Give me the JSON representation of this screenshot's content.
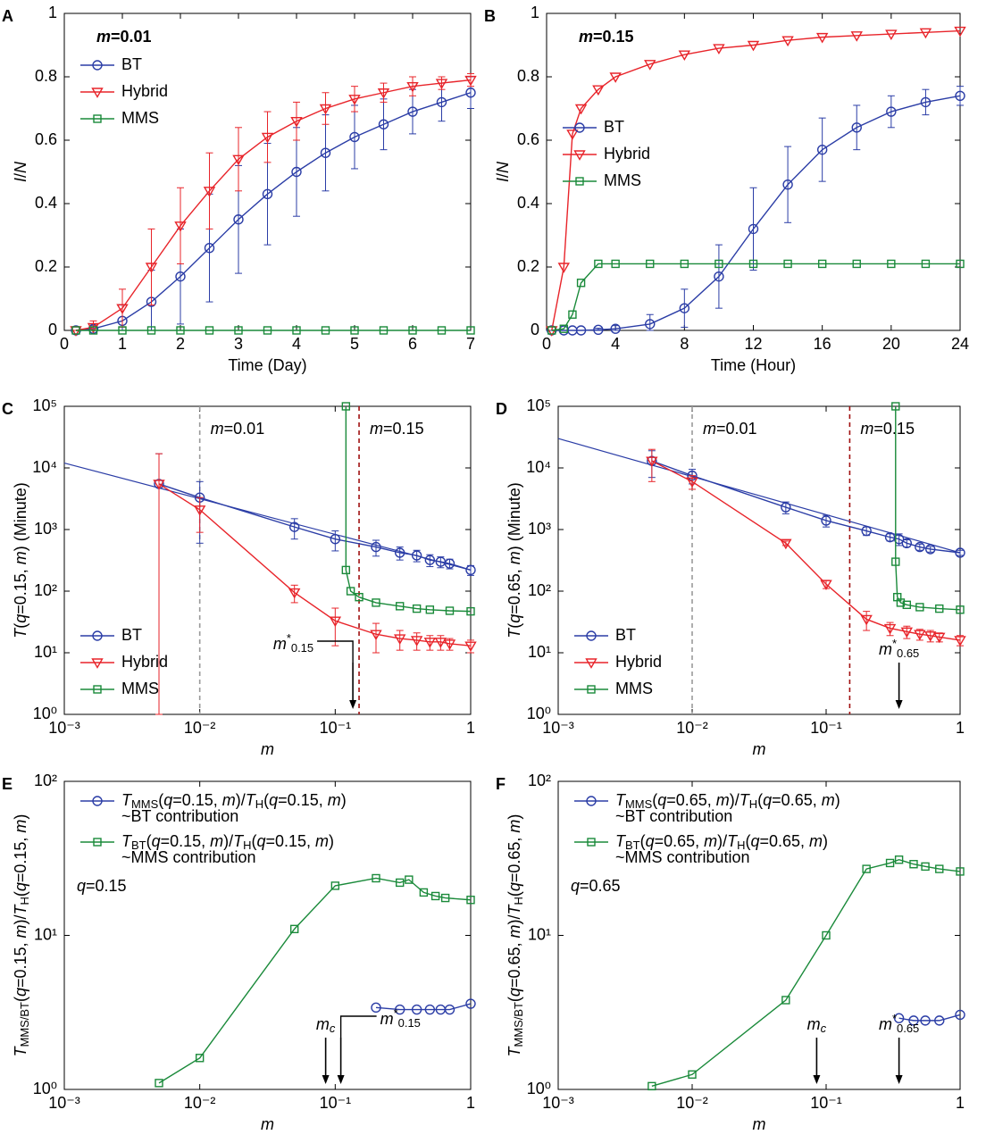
{
  "chart_data": [
    {
      "type": "line",
      "panel": "A",
      "xlabel": "Time (Day)",
      "ylabel": "I/N",
      "xscale": "linear",
      "yscale": "linear",
      "xlim": [
        0,
        7
      ],
      "xticks": [
        0,
        1,
        2,
        3,
        4,
        5,
        6,
        7
      ],
      "ylim": [
        0,
        1
      ],
      "yticks": [
        0,
        0.2,
        0.4,
        0.6,
        0.8,
        1
      ],
      "legend": "upper left",
      "annotations": [
        {
          "text": "m=0.01",
          "color": "#999999"
        }
      ],
      "series": [
        {
          "name": "BT",
          "color": "#2b3da6",
          "marker": "circle",
          "x": [
            0.2,
            0.5,
            1,
            1.5,
            2,
            2.5,
            3,
            3.5,
            4,
            4.5,
            5,
            5.5,
            6,
            6.5,
            7
          ],
          "values": [
            0,
            0.005,
            0.03,
            0.09,
            0.17,
            0.26,
            0.35,
            0.43,
            0.5,
            0.56,
            0.61,
            0.65,
            0.69,
            0.72,
            0.75
          ],
          "errors": [
            0,
            0.01,
            0.05,
            0.1,
            0.15,
            0.17,
            0.17,
            0.16,
            0.14,
            0.12,
            0.1,
            0.08,
            0.07,
            0.06,
            0.05
          ]
        },
        {
          "name": "Hybrid",
          "color": "#e8242a",
          "marker": "triangle",
          "x": [
            0.2,
            0.5,
            1,
            1.5,
            2,
            2.5,
            3,
            3.5,
            4,
            4.5,
            5,
            5.5,
            6,
            6.5,
            7
          ],
          "values": [
            0,
            0.01,
            0.07,
            0.2,
            0.33,
            0.44,
            0.54,
            0.61,
            0.66,
            0.7,
            0.73,
            0.75,
            0.77,
            0.78,
            0.79
          ],
          "errors": [
            0,
            0.02,
            0.06,
            0.12,
            0.12,
            0.12,
            0.1,
            0.08,
            0.06,
            0.05,
            0.04,
            0.03,
            0.03,
            0.02,
            0.02
          ]
        },
        {
          "name": "MMS",
          "color": "#1a8a3a",
          "marker": "square",
          "x": [
            0.2,
            0.5,
            1,
            1.5,
            2,
            2.5,
            3,
            3.5,
            4,
            4.5,
            5,
            5.5,
            6,
            6.5,
            7
          ],
          "values": [
            0,
            0,
            0,
            0,
            0,
            0,
            0,
            0,
            0,
            0,
            0,
            0,
            0,
            0,
            0
          ]
        }
      ]
    },
    {
      "type": "line",
      "panel": "B",
      "xlabel": "Time (Hour)",
      "ylabel": "I/N",
      "xscale": "linear",
      "yscale": "linear",
      "xlim": [
        0,
        24
      ],
      "xticks": [
        0,
        4,
        8,
        12,
        16,
        20,
        24
      ],
      "ylim": [
        0,
        1
      ],
      "yticks": [
        0,
        0.2,
        0.4,
        0.6,
        0.8,
        1
      ],
      "legend": "center left",
      "annotations": [
        {
          "text": "m=0.15",
          "color": "#a01010"
        }
      ],
      "series": [
        {
          "name": "BT",
          "color": "#2b3da6",
          "marker": "circle",
          "x": [
            0.3,
            1,
            1.5,
            2,
            3,
            4,
            6,
            8,
            10,
            12,
            14,
            16,
            18,
            20,
            22,
            24
          ],
          "values": [
            0,
            0,
            0,
            0,
            0.002,
            0.005,
            0.02,
            0.07,
            0.17,
            0.32,
            0.46,
            0.57,
            0.64,
            0.69,
            0.72,
            0.74
          ],
          "errors": [
            0,
            0,
            0,
            0,
            0.005,
            0.01,
            0.03,
            0.06,
            0.1,
            0.13,
            0.12,
            0.1,
            0.07,
            0.05,
            0.04,
            0.03
          ]
        },
        {
          "name": "Hybrid",
          "color": "#e8242a",
          "marker": "triangle",
          "x": [
            0.3,
            1,
            1.5,
            2,
            3,
            4,
            6,
            8,
            10,
            12,
            14,
            16,
            18,
            20,
            22,
            24
          ],
          "values": [
            0,
            0.2,
            0.62,
            0.7,
            0.76,
            0.8,
            0.84,
            0.87,
            0.89,
            0.9,
            0.915,
            0.925,
            0.93,
            0.935,
            0.94,
            0.945
          ]
        },
        {
          "name": "MMS",
          "color": "#1a8a3a",
          "marker": "square",
          "x": [
            0.3,
            1,
            1.5,
            2,
            3,
            4,
            6,
            8,
            10,
            12,
            14,
            16,
            18,
            20,
            22,
            24
          ],
          "values": [
            0,
            0.005,
            0.05,
            0.15,
            0.21,
            0.21,
            0.21,
            0.21,
            0.21,
            0.21,
            0.21,
            0.21,
            0.21,
            0.21,
            0.21,
            0.21
          ]
        }
      ]
    },
    {
      "type": "line",
      "panel": "C",
      "xlabel": "m",
      "ylabel": "T(q=0.15, m) (Minute)",
      "xscale": "log",
      "yscale": "log",
      "xlim": [
        0.001,
        1
      ],
      "xticks": [
        {
          "value": 0.001,
          "label": "10⁻³"
        },
        {
          "value": 0.01,
          "label": "10⁻²"
        },
        {
          "value": 0.1,
          "label": "10⁻¹"
        },
        1
      ],
      "ylim": [
        1,
        100000
      ],
      "yticks": [
        {
          "value": 1,
          "label": "10⁰"
        },
        {
          "value": 10,
          "label": "10¹"
        },
        {
          "value": 100,
          "label": "10²"
        },
        {
          "value": 1000,
          "label": "10³"
        },
        {
          "value": 10000,
          "label": "10⁴"
        },
        {
          "value": 100000,
          "label": "10⁵"
        }
      ],
      "legend": "lower left",
      "vlines": [
        {
          "x": 0.01,
          "color": "#999999",
          "label": "m=0.01"
        },
        {
          "x": 0.15,
          "color": "#a01010",
          "label": "m=0.15"
        }
      ],
      "arrows": [
        {
          "x": 0.135,
          "label": "m*0.15",
          "side": "left"
        }
      ],
      "series": [
        {
          "name": "BT",
          "color": "#2b3da6",
          "marker": "circle",
          "x": [
            0.005,
            0.01,
            0.05,
            0.1,
            0.2,
            0.3,
            0.4,
            0.5,
            0.6,
            0.7,
            1
          ],
          "values": [
            5500,
            3300,
            1100,
            700,
            520,
            420,
            380,
            320,
            300,
            280,
            220
          ],
          "errors": [
            11500,
            2700,
            400,
            250,
            150,
            100,
            80,
            70,
            60,
            50,
            40
          ],
          "fit": {
            "x": [
              0.001,
              1
            ],
            "values": [
              12000,
              220
            ]
          }
        },
        {
          "name": "Hybrid",
          "color": "#e8242a",
          "marker": "triangle",
          "x": [
            0.005,
            0.01,
            0.05,
            0.1,
            0.2,
            0.3,
            0.4,
            0.5,
            0.6,
            0.7,
            1
          ],
          "values": [
            5500,
            2100,
            95,
            33,
            20,
            17,
            16,
            15,
            15,
            14,
            13
          ],
          "errors": [
            11500,
            1200,
            30,
            20,
            10,
            6,
            5,
            4,
            4,
            3,
            3
          ]
        },
        {
          "name": "MMS",
          "color": "#1a8a3a",
          "marker": "square",
          "x": [
            0.12,
            0.12,
            0.13,
            0.15,
            0.2,
            0.3,
            0.4,
            0.5,
            0.7,
            1
          ],
          "values": [
            100000,
            220,
            100,
            80,
            65,
            57,
            52,
            50,
            48,
            47
          ]
        }
      ]
    },
    {
      "type": "line",
      "panel": "D",
      "xlabel": "m",
      "ylabel": "T(q=0.65, m) (Minute)",
      "xscale": "log",
      "yscale": "log",
      "xlim": [
        0.001,
        1
      ],
      "xticks": [
        {
          "value": 0.001,
          "label": "10⁻³"
        },
        {
          "value": 0.01,
          "label": "10⁻²"
        },
        {
          "value": 0.1,
          "label": "10⁻¹"
        },
        1
      ],
      "ylim": [
        1,
        100000
      ],
      "yticks": [
        {
          "value": 1,
          "label": "10⁰"
        },
        {
          "value": 10,
          "label": "10¹"
        },
        {
          "value": 100,
          "label": "10²"
        },
        {
          "value": 1000,
          "label": "10³"
        },
        {
          "value": 10000,
          "label": "10⁴"
        },
        {
          "value": 100000,
          "label": "10⁵"
        }
      ],
      "legend": "lower left",
      "vlines": [
        {
          "x": 0.01,
          "color": "#999999",
          "label": "m=0.01"
        },
        {
          "x": 0.15,
          "color": "#a01010",
          "label": "m=0.15"
        }
      ],
      "arrows": [
        {
          "x": 0.35,
          "label": "m*0.65",
          "side": "above"
        }
      ],
      "series": [
        {
          "name": "BT",
          "color": "#2b3da6",
          "marker": "circle",
          "x": [
            0.005,
            0.01,
            0.05,
            0.1,
            0.2,
            0.3,
            0.35,
            0.4,
            0.5,
            0.6,
            1
          ],
          "values": [
            13000,
            7500,
            2300,
            1400,
            950,
            750,
            700,
            600,
            520,
            480,
            420
          ],
          "errors": [
            6000,
            2000,
            500,
            300,
            150,
            100,
            150,
            80,
            60,
            50,
            40
          ],
          "fit": {
            "x": [
              0.001,
              1
            ],
            "values": [
              30000,
              420
            ]
          }
        },
        {
          "name": "Hybrid",
          "color": "#e8242a",
          "marker": "triangle",
          "x": [
            0.005,
            0.01,
            0.05,
            0.1,
            0.2,
            0.3,
            0.4,
            0.5,
            0.6,
            0.7,
            1
          ],
          "values": [
            13000,
            6000,
            600,
            130,
            35,
            25,
            22,
            20,
            19,
            18,
            16
          ],
          "errors": [
            7000,
            1500,
            50,
            20,
            12,
            6,
            5,
            4,
            4,
            3,
            3
          ]
        },
        {
          "name": "MMS",
          "color": "#1a8a3a",
          "marker": "square",
          "x": [
            0.33,
            0.33,
            0.34,
            0.36,
            0.4,
            0.5,
            0.7,
            1
          ],
          "values": [
            100000,
            300,
            80,
            65,
            60,
            55,
            52,
            50
          ]
        }
      ]
    },
    {
      "type": "line",
      "panel": "E",
      "xlabel": "m",
      "ylabel": "TMMS/BT(q=0.15, m)/TH(q=0.15, m)",
      "xscale": "log",
      "yscale": "log",
      "xlim": [
        0.001,
        1
      ],
      "xticks": [
        {
          "value": 0.001,
          "label": "10⁻³"
        },
        {
          "value": 0.01,
          "label": "10⁻²"
        },
        {
          "value": 0.1,
          "label": "10⁻¹"
        },
        1
      ],
      "ylim": [
        1,
        100
      ],
      "yticks": [
        {
          "value": 1,
          "label": "10⁰"
        },
        {
          "value": 10,
          "label": "10¹"
        },
        {
          "value": 100,
          "label": "10²"
        }
      ],
      "legend": "upper left",
      "annotations": [
        {
          "text": "q=0.15",
          "color": "#000000"
        }
      ],
      "arrows": [
        {
          "x": 0.085,
          "label": "mc",
          "side": "above"
        },
        {
          "x": 0.11,
          "label": "m*0.15",
          "side": "right"
        }
      ],
      "series": [
        {
          "name": "TMMS(q=0.15, m)/TH(q=0.15, m)",
          "note": "~BT contribution",
          "color": "#2b3da6",
          "marker": "circle",
          "x": [
            0.2,
            0.3,
            0.4,
            0.5,
            0.6,
            0.7,
            1
          ],
          "values": [
            3.4,
            3.3,
            3.3,
            3.3,
            3.3,
            3.3,
            3.6
          ]
        },
        {
          "name": "TBT(q=0.15, m)/TH(q=0.15, m)",
          "note": "~MMS contribution",
          "color": "#1a8a3a",
          "marker": "square",
          "x": [
            0.005,
            0.01,
            0.05,
            0.1,
            0.2,
            0.3,
            0.35,
            0.45,
            0.55,
            0.65,
            1
          ],
          "values": [
            1.1,
            1.6,
            11,
            21,
            23.5,
            22,
            23,
            19,
            18,
            17.5,
            17
          ]
        }
      ]
    },
    {
      "type": "line",
      "panel": "F",
      "xlabel": "m",
      "ylabel": "TMMS/BT(q=0.65, m)/TH(q=0.65, m)",
      "xscale": "log",
      "yscale": "log",
      "xlim": [
        0.001,
        1
      ],
      "xticks": [
        {
          "value": 0.001,
          "label": "10⁻³"
        },
        {
          "value": 0.01,
          "label": "10⁻²"
        },
        {
          "value": 0.1,
          "label": "10⁻¹"
        },
        1
      ],
      "ylim": [
        1,
        100
      ],
      "yticks": [
        {
          "value": 1,
          "label": "10⁰"
        },
        {
          "value": 10,
          "label": "10¹"
        },
        {
          "value": 100,
          "label": "10²"
        }
      ],
      "legend": "upper left",
      "annotations": [
        {
          "text": "q=0.65",
          "color": "#000000"
        }
      ],
      "arrows": [
        {
          "x": 0.085,
          "label": "mc",
          "side": "above"
        },
        {
          "x": 0.35,
          "label": "m*0.65",
          "side": "above"
        }
      ],
      "series": [
        {
          "name": "TMMS(q=0.65, m)/TH(q=0.65, m)",
          "note": "~BT contribution",
          "color": "#2b3da6",
          "marker": "circle",
          "x": [
            0.35,
            0.45,
            0.55,
            0.7,
            1
          ],
          "values": [
            2.9,
            2.8,
            2.8,
            2.8,
            3.05
          ]
        },
        {
          "name": "TBT(q=0.65, m)/TH(q=0.65, m)",
          "note": "~MMS contribution",
          "color": "#1a8a3a",
          "marker": "square",
          "x": [
            0.005,
            0.01,
            0.05,
            0.1,
            0.2,
            0.3,
            0.35,
            0.45,
            0.55,
            0.7,
            1
          ],
          "values": [
            1.05,
            1.25,
            3.8,
            10,
            27,
            29.5,
            31,
            29,
            28,
            27,
            26
          ]
        }
      ]
    }
  ]
}
